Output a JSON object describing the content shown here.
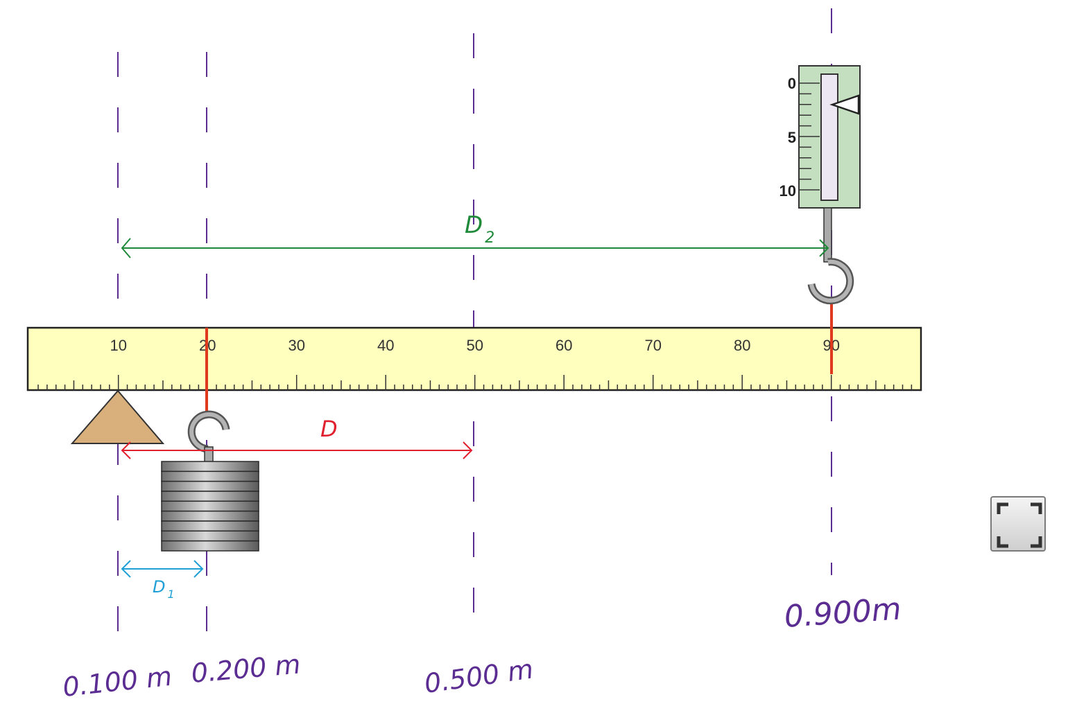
{
  "ruler": {
    "labels": [
      "10",
      "20",
      "30",
      "40",
      "50",
      "60",
      "70",
      "80",
      "90"
    ],
    "color": "#ffffbe"
  },
  "spring_scale": {
    "labels": [
      "0",
      "5",
      "10"
    ],
    "body_color": "#c4dfbf"
  },
  "annotations": {
    "d2": "D",
    "d2_sub": "2",
    "d": "D",
    "d1": "D",
    "d1_sub": "1",
    "pos_pivot": "0.100 m",
    "pos_mass": "0.200 m",
    "pos_center": "0.500 m",
    "pos_scale": "0.900m"
  },
  "colors": {
    "guide_line": "#5b2c91",
    "d2_arrow": "#1f8a3a",
    "d_arrow": "#e0202e",
    "d1_arrow": "#1ea0d6",
    "pivot": "#d9b07c",
    "string": "#e03a1e"
  },
  "icons": {
    "fullscreen": "fullscreen-icon"
  }
}
